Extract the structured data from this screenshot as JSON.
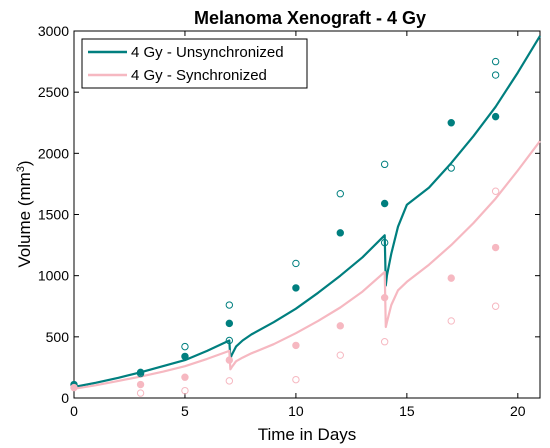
{
  "chart_data": {
    "type": "line",
    "title": "Melanoma Xenograft - 4 Gy",
    "xlabel": "Time in Days",
    "ylabel_main": "Volume (mm",
    "ylabel_sup": "3",
    "ylabel_close": ")",
    "xlim": [
      0,
      21
    ],
    "ylim": [
      0,
      3000
    ],
    "xticks": [
      0,
      5,
      10,
      15,
      20
    ],
    "yticks": [
      0,
      500,
      1000,
      1500,
      2000,
      2500,
      3000
    ],
    "grid": false,
    "legend_position": "top-left",
    "series": [
      {
        "name": "4 Gy - Unsynchronized",
        "color": "#007f7f",
        "x": [
          0,
          1,
          2,
          3,
          4,
          5,
          6,
          7,
          7.05,
          7.1,
          7.3,
          7.6,
          8,
          9,
          10,
          11,
          12,
          13,
          14,
          14.05,
          14.1,
          14.3,
          14.6,
          15,
          16,
          17,
          18,
          19,
          20,
          21
        ],
        "y": [
          90,
          125,
          165,
          210,
          260,
          310,
          385,
          470,
          320,
          350,
          420,
          470,
          520,
          620,
          730,
          860,
          1000,
          1150,
          1330,
          920,
          1000,
          1180,
          1400,
          1580,
          1720,
          1920,
          2140,
          2380,
          2660,
          2960
        ]
      },
      {
        "name": "4 Gy - Synchronized",
        "color": "#f6b8c1",
        "x": [
          0,
          1,
          2,
          3,
          4,
          5,
          6,
          7,
          7.05,
          7.1,
          7.3,
          7.6,
          8,
          9,
          10,
          11,
          12,
          13,
          14,
          14.05,
          14.1,
          14.3,
          14.6,
          15,
          16,
          17,
          18,
          19,
          20,
          21
        ],
        "y": [
          75,
          105,
          140,
          175,
          215,
          260,
          320,
          385,
          235,
          250,
          300,
          330,
          365,
          440,
          530,
          630,
          740,
          870,
          1030,
          580,
          620,
          760,
          880,
          950,
          1090,
          1250,
          1430,
          1630,
          1860,
          2100
        ]
      }
    ],
    "observations": [
      {
        "series": "4 Gy - Unsynchronized",
        "style": "filled",
        "color": "#007f7f",
        "x": [
          0,
          3,
          5,
          7,
          10,
          12,
          14,
          17,
          19
        ],
        "y": [
          110,
          210,
          340,
          610,
          900,
          1350,
          1590,
          2250,
          2300
        ]
      },
      {
        "series": "4 Gy - Unsynchronized",
        "style": "open",
        "color": "#007f7f",
        "x": [
          3,
          5,
          7,
          7,
          10,
          12,
          14,
          14,
          17,
          19,
          19
        ],
        "y": [
          200,
          420,
          760,
          470,
          1100,
          1670,
          1910,
          1270,
          1880,
          2640,
          2750
        ]
      },
      {
        "series": "4 Gy - Synchronized",
        "style": "filled",
        "color": "#f6b8c1",
        "x": [
          0,
          3,
          5,
          7,
          10,
          12,
          14,
          17,
          19
        ],
        "y": [
          85,
          110,
          170,
          310,
          430,
          590,
          820,
          980,
          1230
        ]
      },
      {
        "series": "4 Gy - Synchronized",
        "style": "open",
        "color": "#f6b8c1",
        "x": [
          3,
          5,
          7,
          10,
          12,
          14,
          17,
          19,
          19
        ],
        "y": [
          40,
          60,
          140,
          150,
          350,
          460,
          630,
          750,
          1690
        ]
      }
    ]
  }
}
